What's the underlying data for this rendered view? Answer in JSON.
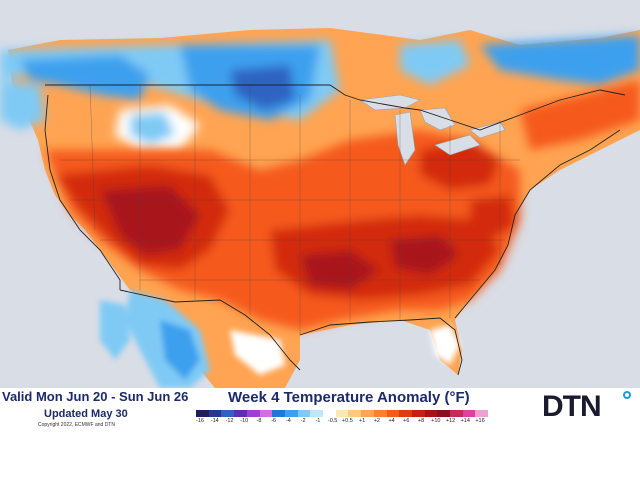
{
  "header": {
    "valid_text": "Valid Mon Jun 20 - Sun Jun 26",
    "updated_text": "Updated May 30",
    "copyright": "Copyright 2022, ECMWF and DTN",
    "title": "Week 4 Temperature Anomaly (°F)"
  },
  "logo": {
    "text": "DTN",
    "accent_color": "#1c9ad6"
  },
  "legend": {
    "colors": [
      "#1d1d5e",
      "#233a8c",
      "#2f63c1",
      "#5b2fb0",
      "#a040d0",
      "#d070e0",
      "#1f77d8",
      "#3da0ee",
      "#7fcaf5",
      "#bfe6fb",
      "#ffffff",
      "#ffe7b0",
      "#ffc980",
      "#ffa452",
      "#ff7f2e",
      "#f55a1a",
      "#e03a10",
      "#c81f10",
      "#a81414",
      "#8a1020",
      "#c8285a",
      "#e040a0",
      "#f0a0d0"
    ],
    "ticks": [
      "-16",
      "-14",
      "-12",
      "-10",
      "-8",
      "-6",
      "-4",
      "-2",
      "-1",
      "-0.5",
      "+0.5",
      "+1",
      "+2",
      "+4",
      "+6",
      "+8",
      "+10",
      "+12",
      "+14",
      "+16"
    ]
  },
  "colors": {
    "water": "#d9dde6",
    "land_cold": "#3da0ee",
    "land_cool": "#9fd7f7",
    "land_neutral": "#ffffff",
    "land_warm": "#ffa452",
    "land_hot": "#f55a1a",
    "land_very_hot": "#d32a10",
    "land_extreme": "#a8141a",
    "border": "#222222"
  }
}
